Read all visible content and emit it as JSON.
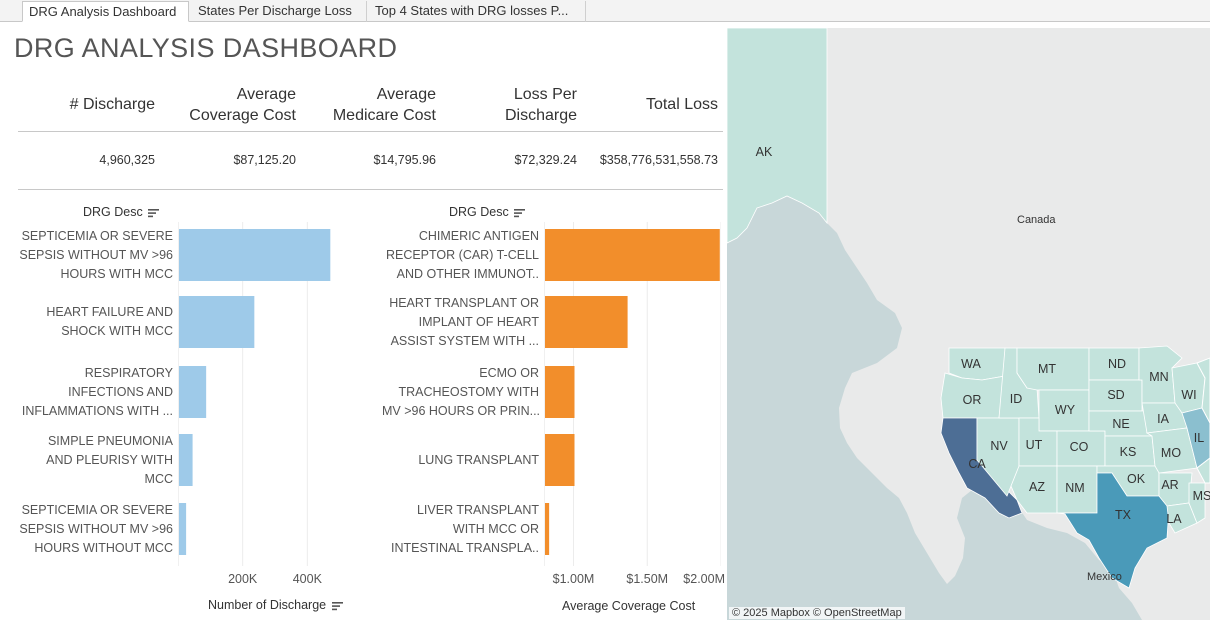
{
  "tabs": [
    {
      "label": "DRG Analysis Dashboard",
      "active": true
    },
    {
      "label": "States Per Discharge Loss",
      "active": false
    },
    {
      "label": "Top 4 States with DRG losses P...",
      "active": false
    }
  ],
  "dashboard": {
    "title": "DRG ANALYSIS DASHBOARD",
    "kpi": {
      "headers": {
        "discharge": [
          "# Discharge"
        ],
        "avg_coverage": [
          "Average",
          "Coverage Cost"
        ],
        "avg_medicare": [
          "Average",
          "Medicare Cost"
        ],
        "loss_per_discharge": [
          "Loss Per",
          "Discharge"
        ],
        "total_loss": [
          "Total Loss"
        ]
      },
      "values": {
        "discharge": "4,960,325",
        "avg_coverage": "$87,125.20",
        "avg_medicare": "$14,795.96",
        "loss_per_discharge": "$72,329.24",
        "total_loss": "$358,776,531,558.73"
      }
    }
  },
  "chart_data": [
    {
      "type": "bar",
      "orientation": "horizontal",
      "row_header": "DRG Desc",
      "xlabel": "Number of Discharge",
      "color": "#9ecae9",
      "xlim": [
        0,
        600000
      ],
      "ticks": [
        {
          "value": 200000,
          "label": "200K"
        },
        {
          "value": 400000,
          "label": "400K"
        }
      ],
      "categories": [
        [
          "SEPTICEMIA OR SEVERE",
          "SEPSIS WITHOUT MV >96",
          "HOURS WITH MCC"
        ],
        [
          "HEART FAILURE AND",
          "SHOCK WITH MCC"
        ],
        [
          "RESPIRATORY",
          "INFECTIONS AND",
          "INFLAMMATIONS WITH ..."
        ],
        [
          "SIMPLE PNEUMONIA",
          "AND PLEURISY WITH",
          "MCC"
        ],
        [
          "SEPTICEMIA OR SEVERE",
          "SEPSIS WITHOUT MV >96",
          "HOURS WITHOUT MCC"
        ]
      ],
      "values": [
        468000,
        233000,
        84000,
        42000,
        22000
      ]
    },
    {
      "type": "bar",
      "orientation": "horizontal",
      "row_header": "DRG Desc",
      "xlabel": "Average Coverage Cost",
      "color": "#f28e2b",
      "xlim": [
        800000,
        2000000
      ],
      "ticks": [
        {
          "value": 1000000,
          "label": "$1.00M"
        },
        {
          "value": 1500000,
          "label": "$1.50M"
        },
        {
          "value": 2000000,
          "label": "$2.00M"
        }
      ],
      "categories": [
        [
          "CHIMERIC ANTIGEN",
          "RECEPTOR (CAR) T-CELL",
          "AND OTHER IMMUNOT.."
        ],
        [
          "HEART TRANSPLANT OR",
          "IMPLANT OF HEART",
          "ASSIST SYSTEM WITH ..."
        ],
        [
          "ECMO OR",
          "TRACHEOSTOMY WITH",
          "MV >96 HOURS OR PRIN..."
        ],
        [
          "LUNG TRANSPLANT"
        ],
        [
          "LIVER TRANSPLANT",
          "WITH MCC OR",
          "INTESTINAL TRANSPLA.."
        ]
      ],
      "values": [
        1985000,
        1360000,
        1000000,
        1000000,
        828000
      ]
    }
  ],
  "map": {
    "credit": "© 2025 Mapbox  © OpenStreetMap",
    "place_labels": {
      "canada": "Canada",
      "mexico": "Mexico"
    },
    "colors": {
      "water": "#c8d7d9",
      "land": "#e9eaea",
      "state_low": "#c3e3dc",
      "state_mid": "#8bbfcf",
      "state_tx": "#4a9ab9",
      "state_ca": "#4d6e95"
    },
    "states": [
      {
        "code": "AK",
        "tier": "low"
      },
      {
        "code": "WA",
        "tier": "low"
      },
      {
        "code": "OR",
        "tier": "low"
      },
      {
        "code": "CA",
        "tier": "ca"
      },
      {
        "code": "NV",
        "tier": "low"
      },
      {
        "code": "ID",
        "tier": "low"
      },
      {
        "code": "MT",
        "tier": "low"
      },
      {
        "code": "WY",
        "tier": "low"
      },
      {
        "code": "UT",
        "tier": "low"
      },
      {
        "code": "AZ",
        "tier": "low"
      },
      {
        "code": "CO",
        "tier": "low"
      },
      {
        "code": "NM",
        "tier": "low"
      },
      {
        "code": "ND",
        "tier": "low"
      },
      {
        "code": "SD",
        "tier": "low"
      },
      {
        "code": "NE",
        "tier": "low"
      },
      {
        "code": "KS",
        "tier": "low"
      },
      {
        "code": "OK",
        "tier": "low"
      },
      {
        "code": "TX",
        "tier": "tx"
      },
      {
        "code": "MN",
        "tier": "low"
      },
      {
        "code": "IA",
        "tier": "low"
      },
      {
        "code": "MO",
        "tier": "low"
      },
      {
        "code": "AR",
        "tier": "low"
      },
      {
        "code": "LA",
        "tier": "low"
      },
      {
        "code": "WI",
        "tier": "low"
      },
      {
        "code": "IL",
        "tier": "mid"
      },
      {
        "code": "MS",
        "tier": "low"
      }
    ]
  }
}
